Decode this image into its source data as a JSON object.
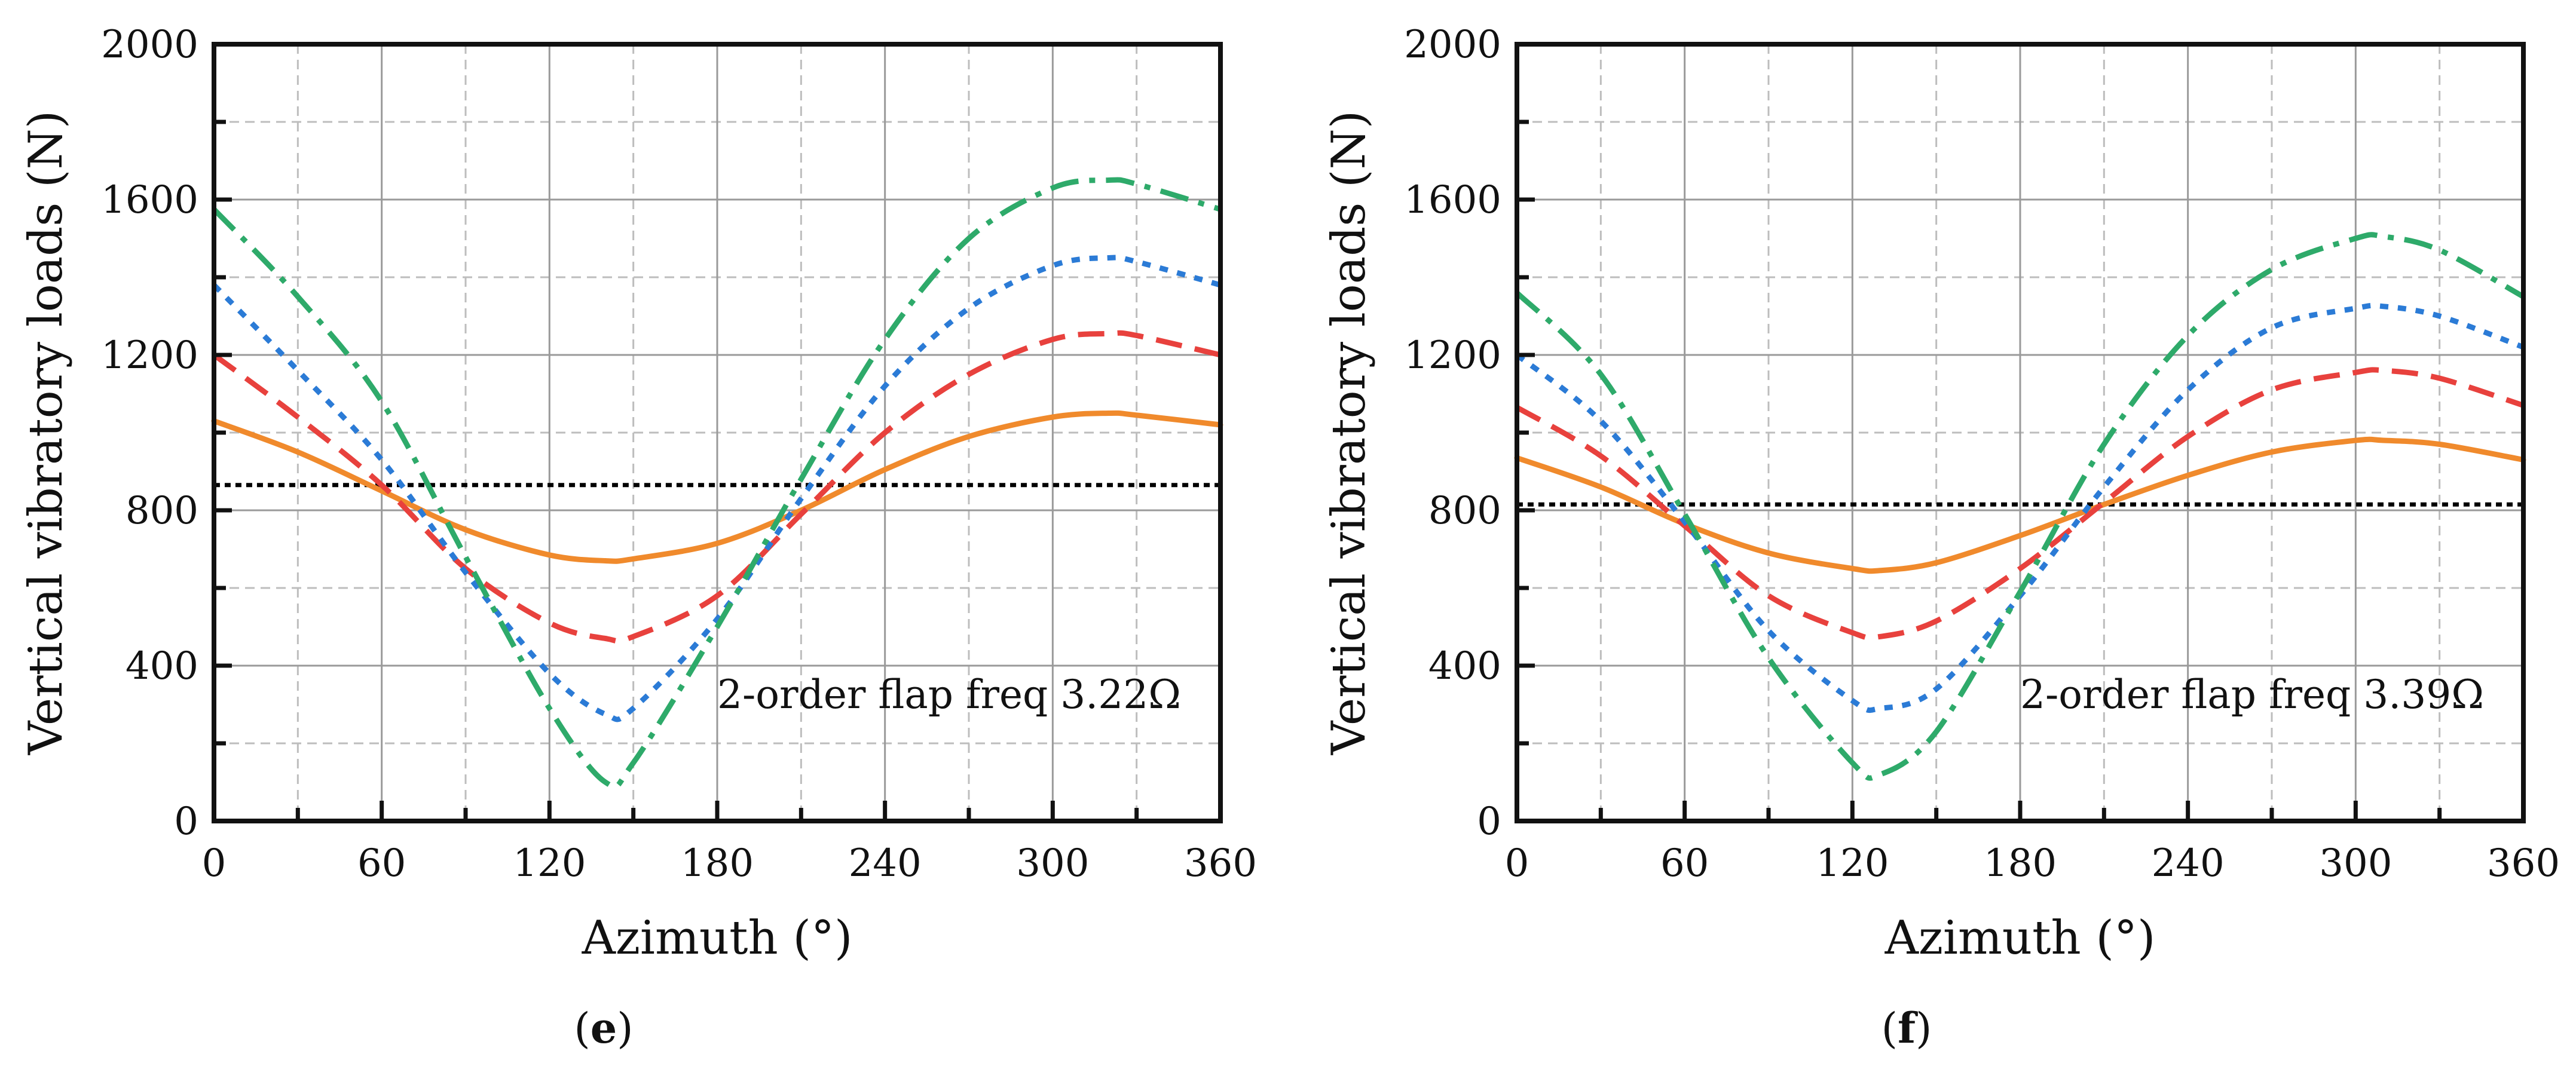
{
  "chart_data": [
    {
      "type": "line",
      "panel_label": "e",
      "xlabel": "Azimuth (°)",
      "ylabel": "Vertical vibratory loads (N)",
      "xlim": [
        0,
        360
      ],
      "ylim": [
        0,
        2000
      ],
      "xticks": [
        0,
        60,
        120,
        180,
        240,
        300,
        360
      ],
      "yticks": [
        0,
        400,
        800,
        1200,
        1600,
        2000
      ],
      "annotation": "2-order flap freq 3.22Ω",
      "x": [
        0,
        30,
        60,
        90,
        120,
        140,
        150,
        180,
        210,
        240,
        270,
        300,
        320,
        330,
        360
      ],
      "series": [
        {
          "name": "mean",
          "color": "#000000",
          "style": "dotted-black",
          "values": [
            865,
            865,
            865,
            865,
            865,
            865,
            865,
            865,
            865,
            865,
            865,
            865,
            865,
            865,
            865
          ]
        },
        {
          "name": "orange",
          "color": "#f08a2c",
          "style": "solid",
          "values": [
            1030,
            950,
            850,
            750,
            685,
            670,
            675,
            715,
            800,
            905,
            990,
            1040,
            1050,
            1045,
            1020
          ]
        },
        {
          "name": "red",
          "color": "#e8413d",
          "style": "dashed",
          "values": [
            1200,
            1040,
            865,
            650,
            510,
            470,
            475,
            580,
            790,
            1000,
            1150,
            1240,
            1255,
            1250,
            1200
          ]
        },
        {
          "name": "blue",
          "color": "#2b7bd6",
          "style": "dotted",
          "values": [
            1380,
            1160,
            930,
            640,
            380,
            275,
            290,
            520,
            830,
            1120,
            1320,
            1430,
            1450,
            1440,
            1380
          ]
        },
        {
          "name": "green",
          "color": "#2eaa6a",
          "style": "dash-dot",
          "values": [
            1575,
            1350,
            1080,
            680,
            290,
            100,
            150,
            500,
            880,
            1240,
            1500,
            1630,
            1650,
            1640,
            1575
          ]
        }
      ]
    },
    {
      "type": "line",
      "panel_label": "f",
      "xlabel": "Azimuth (°)",
      "ylabel": "Vertical vibratory loads (N)",
      "xlim": [
        0,
        360
      ],
      "ylim": [
        0,
        2000
      ],
      "xticks": [
        0,
        60,
        120,
        180,
        240,
        300,
        360
      ],
      "yticks": [
        0,
        400,
        800,
        1200,
        1600,
        2000
      ],
      "annotation": "2-order flap freq 3.39Ω",
      "x": [
        0,
        30,
        60,
        90,
        120,
        130,
        150,
        180,
        210,
        240,
        270,
        300,
        310,
        330,
        360
      ],
      "series": [
        {
          "name": "mean",
          "color": "#000000",
          "style": "dotted-black",
          "values": [
            815,
            815,
            815,
            815,
            815,
            815,
            815,
            815,
            815,
            815,
            815,
            815,
            815,
            815,
            815
          ]
        },
        {
          "name": "orange",
          "color": "#f08a2c",
          "style": "solid",
          "values": [
            935,
            860,
            765,
            690,
            650,
            645,
            665,
            735,
            815,
            890,
            950,
            980,
            980,
            970,
            930
          ]
        },
        {
          "name": "red",
          "color": "#e8413d",
          "style": "dashed",
          "values": [
            1065,
            940,
            760,
            580,
            485,
            475,
            515,
            650,
            820,
            990,
            1110,
            1155,
            1160,
            1140,
            1070
          ]
        },
        {
          "name": "blue",
          "color": "#2b7bd6",
          "style": "dotted",
          "values": [
            1200,
            1030,
            770,
            490,
            310,
            290,
            340,
            580,
            860,
            1110,
            1270,
            1320,
            1325,
            1300,
            1220
          ]
        },
        {
          "name": "green",
          "color": "#2eaa6a",
          "style": "dash-dot",
          "values": [
            1360,
            1150,
            790,
            420,
            150,
            120,
            230,
            590,
            970,
            1250,
            1420,
            1500,
            1505,
            1470,
            1350
          ]
        }
      ]
    }
  ]
}
